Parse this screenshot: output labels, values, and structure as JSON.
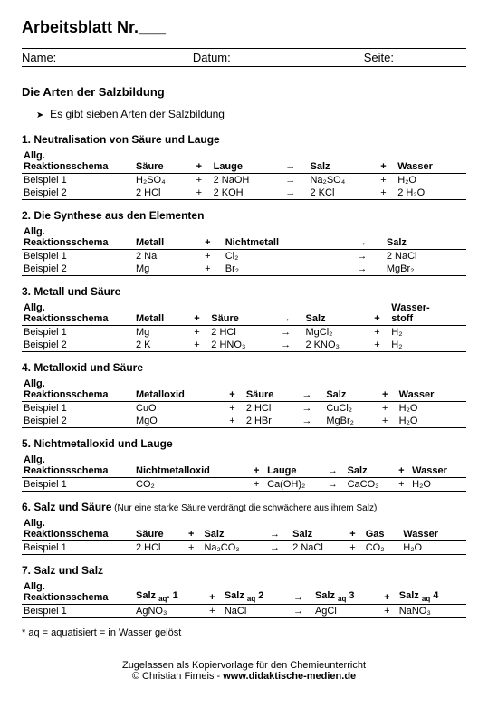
{
  "page": {
    "title": "Arbeitsblatt Nr.___",
    "header": {
      "name": "Name:",
      "date": "Datum:",
      "page": "Seite:"
    },
    "subtitle": "Die Arten der Salzbildung",
    "intro": "Es gibt sieben Arten der Salzbildung",
    "footnote": "* aq = aquatisiert = in Wasser gelöst",
    "footer1": "Zugelassen als Kopiervorlage für den Chemieunterricht",
    "footer2_a": "© Christian Firneis - ",
    "footer2_b": "www.didaktische-medien.de"
  },
  "sections": [
    {
      "title": "1. Neutralisation von Säure und Lauge",
      "cols": [
        "Allg. Reaktionsschema",
        "Säure",
        "+",
        "Lauge",
        "→",
        "Salz",
        "+",
        "Wasser"
      ],
      "rows": [
        [
          "Beispiel 1",
          "H₂SO₄",
          "+",
          "2 NaOH",
          "→",
          "Na₂SO₄",
          "+",
          "H₂O"
        ],
        [
          "Beispiel 2",
          "2 HCl",
          "+",
          "2 KOH",
          "→",
          "2 KCl",
          "+",
          "2 H₂O"
        ]
      ]
    },
    {
      "title": "2. Die Synthese aus den Elementen",
      "cols": [
        "Allg. Reaktionsschema",
        "Metall",
        "+",
        "Nichtmetall",
        "",
        "→",
        "Salz",
        ""
      ],
      "rows": [
        [
          "Beispiel 1",
          "2 Na",
          "+",
          "Cl₂",
          "",
          "→",
          "2 NaCl",
          ""
        ],
        [
          "Beispiel 2",
          "Mg",
          "+",
          "Br₂",
          "",
          "→",
          "MgBr₂",
          ""
        ]
      ]
    },
    {
      "title": "3. Metall und Säure",
      "cols": [
        "Allg. Reaktionsschema",
        "Metall",
        "+",
        "Säure",
        "→",
        "Salz",
        "+",
        "Wasser-\nstoff"
      ],
      "rows": [
        [
          "Beispiel 1",
          "Mg",
          "+",
          "2 HCl",
          "→",
          "MgCl₂",
          "+",
          "H₂"
        ],
        [
          "Beispiel 2",
          "2 K",
          "+",
          "2 HNO₃",
          "→",
          "2 KNO₃",
          "+",
          "H₂"
        ]
      ]
    },
    {
      "title": "4. Metalloxid und Säure",
      "cols": [
        "Allg. Reaktionsschema",
        "Metalloxid",
        "+",
        "Säure",
        "→",
        "Salz",
        "+",
        "Wasser"
      ],
      "rows": [
        [
          "Beispiel 1",
          "CuO",
          "+",
          "2 HCl",
          "→",
          "CuCl₂",
          "+",
          "H₂O"
        ],
        [
          "Beispiel 2",
          "MgO",
          "+",
          "2 HBr",
          "→",
          "MgBr₂",
          "+",
          "H₂O"
        ]
      ]
    },
    {
      "title": "5. Nichtmetalloxid und Lauge",
      "cols": [
        "Allg. Reaktionsschema",
        "Nichtmetalloxid",
        "",
        "+",
        "Lauge",
        "→",
        "Salz",
        "+",
        "Wasser"
      ],
      "rows": [
        [
          "Beispiel 1",
          "CO₂",
          "",
          "+",
          "Ca(OH)₂",
          "→",
          "CaCO₃",
          "+",
          "H₂O"
        ]
      ]
    },
    {
      "title": "6. Salz und Säure",
      "note": " (Nur eine starke Säure verdrängt die schwächere aus ihrem Salz)",
      "cols": [
        "Allg. Reaktionsschema",
        "Säure",
        "+",
        "Salz",
        "→",
        "Salz",
        "+",
        "Gas",
        "Wasser"
      ],
      "rows": [
        [
          "Beispiel 1",
          "2 HCl",
          "+",
          "Na₂CO₃",
          "→",
          "2 NaCl",
          "+",
          "CO₂",
          "H₂O"
        ]
      ]
    },
    {
      "title": "7. Salz und Salz",
      "cols": [
        "Allg. Reaktionsschema",
        "Salz aq* 1",
        "+",
        "Salz aq 2",
        "→",
        "Salz aq 3",
        "+",
        "Salz aq 4"
      ],
      "rows": [
        [
          "Beispiel 1",
          "AgNO₃",
          "+",
          "NaCl",
          "→",
          "AgCl",
          "+",
          "NaNO₃"
        ]
      ]
    }
  ]
}
